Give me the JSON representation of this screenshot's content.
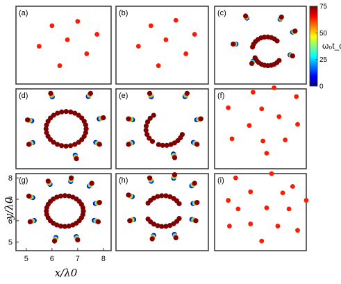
{
  "chart_data": {
    "type": "scatter",
    "colormap": "jet",
    "grid": false,
    "colorbar": {
      "label": "ω₀t_d",
      "range": [
        0,
        75
      ],
      "ticks": [
        "75",
        "50",
        "25",
        "0"
      ],
      "tick_values": [
        75,
        50,
        25,
        0
      ],
      "colors": [
        "#00007f",
        "#0000ff",
        "#007fff",
        "#00ffff",
        "#7fff7f",
        "#ffff00",
        "#ff7f00",
        "#ff0000",
        "#7f0000"
      ]
    },
    "axes_g": {
      "xlabel": "x/λ0",
      "ylabel": "y/λ0",
      "xlim": [
        4.6,
        8.3
      ],
      "ylim": [
        4.6,
        8.2
      ],
      "xticks": [
        5,
        6,
        7,
        8
      ],
      "xtick_labels": [
        "5",
        "6",
        "7",
        "8"
      ],
      "yticks": [
        5,
        6,
        7,
        8
      ],
      "ytick_labels": [
        "5",
        "6",
        "7",
        "8"
      ]
    },
    "panels": [
      {
        "label": "(a)",
        "particles": [
          [
            6.0,
            7.3,
            0
          ],
          [
            7.0,
            7.5,
            0
          ],
          [
            7.75,
            6.9,
            0
          ],
          [
            6.6,
            6.65,
            0
          ],
          [
            5.5,
            6.35,
            0
          ],
          [
            7.35,
            6.0,
            0
          ],
          [
            6.3,
            5.45,
            0
          ]
        ],
        "arcs": []
      },
      {
        "label": "(b)",
        "particles": [
          [
            6.0,
            7.3,
            0
          ],
          [
            7.0,
            7.55,
            0
          ],
          [
            7.75,
            6.9,
            0
          ],
          [
            6.6,
            6.65,
            0
          ],
          [
            5.5,
            6.35,
            0
          ],
          [
            7.4,
            6.0,
            0
          ],
          [
            6.3,
            5.45,
            0
          ]
        ],
        "arcs": []
      },
      {
        "label": "(c)",
        "particles": [
          [
            5.85,
            7.75,
            0.8
          ],
          [
            7.3,
            7.7,
            0.8
          ],
          [
            7.85,
            7.05,
            0.8
          ],
          [
            5.35,
            6.45,
            0.8
          ],
          [
            7.75,
            5.9,
            0.8
          ],
          [
            6.1,
            5.55,
            0.8
          ]
        ],
        "arcs": [
          [
            6.7,
            6.2,
            0.58,
            0.75,
            1.5,
            2.95,
            1.0
          ],
          [
            6.75,
            6.0,
            0.55,
            -0.6,
            1.0,
            -2.8,
            1.0
          ]
        ]
      },
      {
        "label": "(d)",
        "particles": [
          [
            5.95,
            8.0,
            1.2
          ],
          [
            7.5,
            8.0,
            1.2
          ],
          [
            5.05,
            6.8,
            1.2
          ],
          [
            8.0,
            6.9,
            1.2
          ],
          [
            5.1,
            5.7,
            1.2
          ],
          [
            7.85,
            5.7,
            1.2
          ],
          [
            6.95,
            5.05,
            1.2
          ]
        ],
        "arcs": [
          [
            6.55,
            6.4,
            0.78,
            0.0,
            1.0,
            6.28,
            1.0
          ]
        ]
      },
      {
        "label": "(e)",
        "particles": [
          [
            5.95,
            8.0,
            1.2
          ],
          [
            7.45,
            8.0,
            1.2
          ],
          [
            5.1,
            6.85,
            1.2
          ],
          [
            8.0,
            6.85,
            1.2
          ],
          [
            5.1,
            5.7,
            1.2
          ],
          [
            7.85,
            5.7,
            1.2
          ],
          [
            6.95,
            5.1,
            1.2
          ]
        ],
        "arcs": [
          [
            6.55,
            6.4,
            0.75,
            2.2,
            1.0,
            4.0,
            1.0
          ],
          [
            6.55,
            6.4,
            0.75,
            -0.35,
            1.0,
            -1.9,
            1.0
          ]
        ]
      },
      {
        "label": "(f)",
        "particles": [
          [
            6.15,
            8.05,
            0
          ],
          [
            7.0,
            8.25,
            0
          ],
          [
            7.9,
            7.85,
            0
          ],
          [
            5.15,
            7.35,
            0
          ],
          [
            6.5,
            7.3,
            0
          ],
          [
            7.2,
            6.95,
            0
          ],
          [
            7.95,
            6.6,
            0
          ],
          [
            6.0,
            6.55,
            0
          ],
          [
            5.3,
            5.95,
            0
          ],
          [
            6.55,
            5.85,
            0
          ],
          [
            7.45,
            5.9,
            0
          ],
          [
            6.7,
            5.3,
            0
          ]
        ],
        "arcs": []
      },
      {
        "label": "(g)",
        "particles": [
          [
            5.85,
            7.85,
            1.2
          ],
          [
            6.75,
            8.0,
            1.2
          ],
          [
            7.55,
            7.75,
            1.2
          ],
          [
            5.1,
            7.15,
            1.2
          ],
          [
            7.85,
            6.85,
            1.2
          ],
          [
            5.15,
            5.95,
            1.2
          ],
          [
            7.8,
            5.95,
            1.2
          ],
          [
            6.1,
            5.05,
            1.2
          ],
          [
            7.0,
            5.1,
            1.2
          ]
        ],
        "arcs": [
          [
            6.5,
            6.45,
            0.72,
            0.0,
            1.0,
            6.28,
            1.0
          ]
        ]
      },
      {
        "label": "(h)",
        "particles": [
          [
            5.95,
            8.0,
            1.2
          ],
          [
            6.95,
            8.15,
            1.2
          ],
          [
            7.75,
            7.75,
            1.2
          ],
          [
            5.1,
            7.2,
            1.2
          ],
          [
            7.85,
            6.85,
            1.2
          ],
          [
            5.15,
            6.0,
            1.2
          ],
          [
            7.8,
            6.0,
            1.2
          ],
          [
            6.05,
            5.15,
            1.2
          ],
          [
            7.0,
            5.2,
            1.2
          ]
        ],
        "arcs": [
          [
            6.5,
            6.45,
            0.72,
            0.5,
            1.0,
            2.6,
            1.0
          ],
          [
            6.5,
            6.45,
            0.72,
            -0.5,
            1.0,
            -2.6,
            1.0
          ]
        ]
      },
      {
        "label": "(i)",
        "particles": [
          [
            5.45,
            8.0,
            0
          ],
          [
            6.9,
            8.2,
            0
          ],
          [
            7.75,
            7.6,
            0
          ],
          [
            5.15,
            6.95,
            0
          ],
          [
            6.05,
            7.35,
            0
          ],
          [
            7.35,
            7.3,
            0
          ],
          [
            6.7,
            6.6,
            0
          ],
          [
            5.55,
            6.55,
            0
          ],
          [
            7.6,
            6.55,
            0
          ],
          [
            8.3,
            6.95,
            0
          ],
          [
            6.05,
            5.85,
            0
          ],
          [
            5.2,
            5.75,
            0
          ],
          [
            7.15,
            5.75,
            0
          ],
          [
            7.95,
            5.55,
            0
          ],
          [
            6.5,
            5.05,
            0
          ]
        ],
        "arcs": []
      }
    ]
  }
}
